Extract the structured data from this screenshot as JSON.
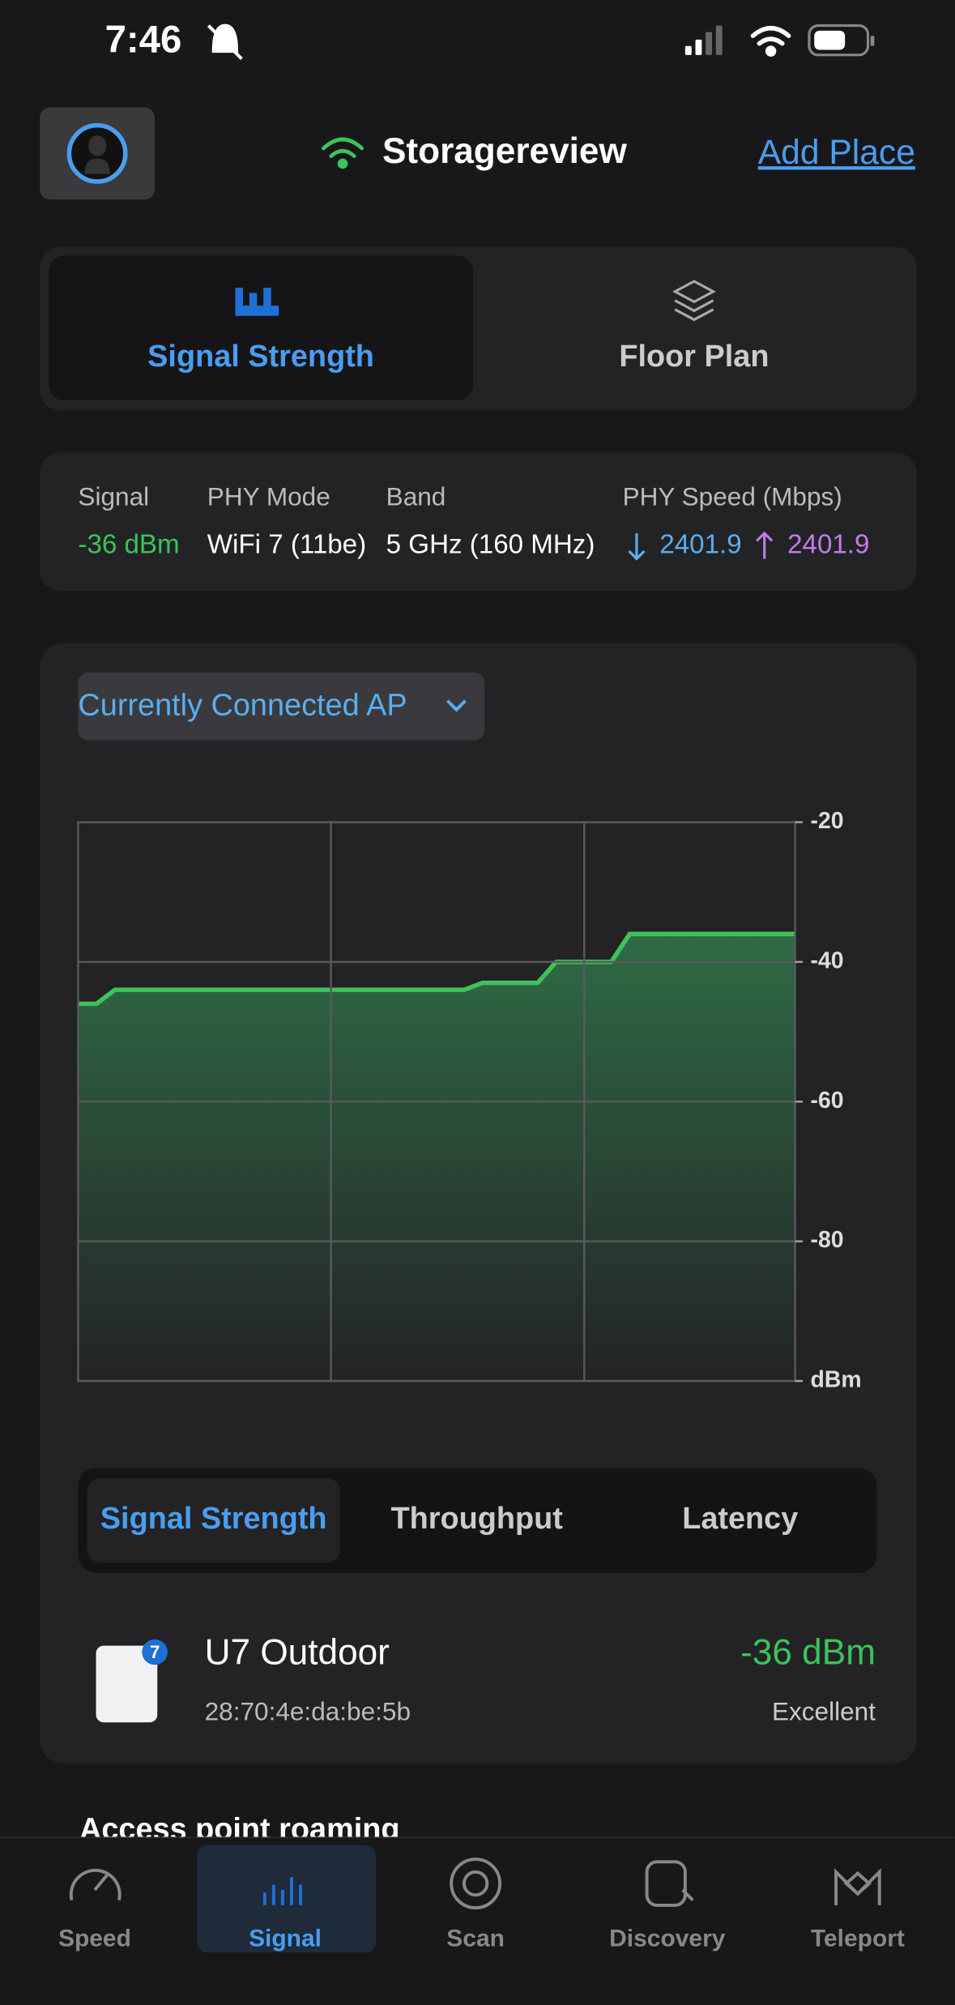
{
  "status_bar": {
    "time": "7:46"
  },
  "header": {
    "title": "Storagereview",
    "add_place": "Add Place"
  },
  "mode_tabs": [
    "Signal Strength",
    "Floor Plan"
  ],
  "info": {
    "signal_label": "Signal",
    "signal_value": "-36 dBm",
    "phy_mode_label": "PHY Mode",
    "phy_mode_value": "WiFi 7 (11be)",
    "band_label": "Band",
    "band_value": "5 GHz (160 MHz)",
    "phy_speed_label": "PHY Speed (Mbps)",
    "download": "2401.9",
    "upload": "2401.9"
  },
  "dropdown": "Currently Connected AP",
  "chart_data": {
    "type": "area",
    "color": "#3cc35a",
    "values": [
      -46,
      -46,
      -44,
      -44,
      -44,
      -44,
      -44,
      -44,
      -44,
      -44,
      -44,
      -44,
      -44,
      -44,
      -44,
      -44,
      -44,
      -44,
      -44,
      -44,
      -44,
      -44,
      -43,
      -43,
      -43,
      -43,
      -40,
      -40,
      -40,
      -40,
      -36,
      -36,
      -36,
      -36,
      -36,
      -36,
      -36,
      -36,
      -36,
      -36
    ],
    "ylim": [
      -100,
      -20
    ],
    "yticks": [
      -20,
      -40,
      -60,
      -80,
      {
        "value": -100,
        "label": "dBm"
      }
    ],
    "grid": true
  },
  "metric_tabs": [
    "Signal Strength",
    "Throughput",
    "Latency"
  ],
  "device": {
    "badge": "7",
    "name": "U7 Outdoor",
    "mac": "28:70:4e:da:be:5b",
    "signal": "-36 dBm",
    "quality": "Excellent"
  },
  "section_title": "Access point roaming",
  "nav": [
    "Speed",
    "Signal",
    "Scan",
    "Discovery",
    "Teleport"
  ]
}
